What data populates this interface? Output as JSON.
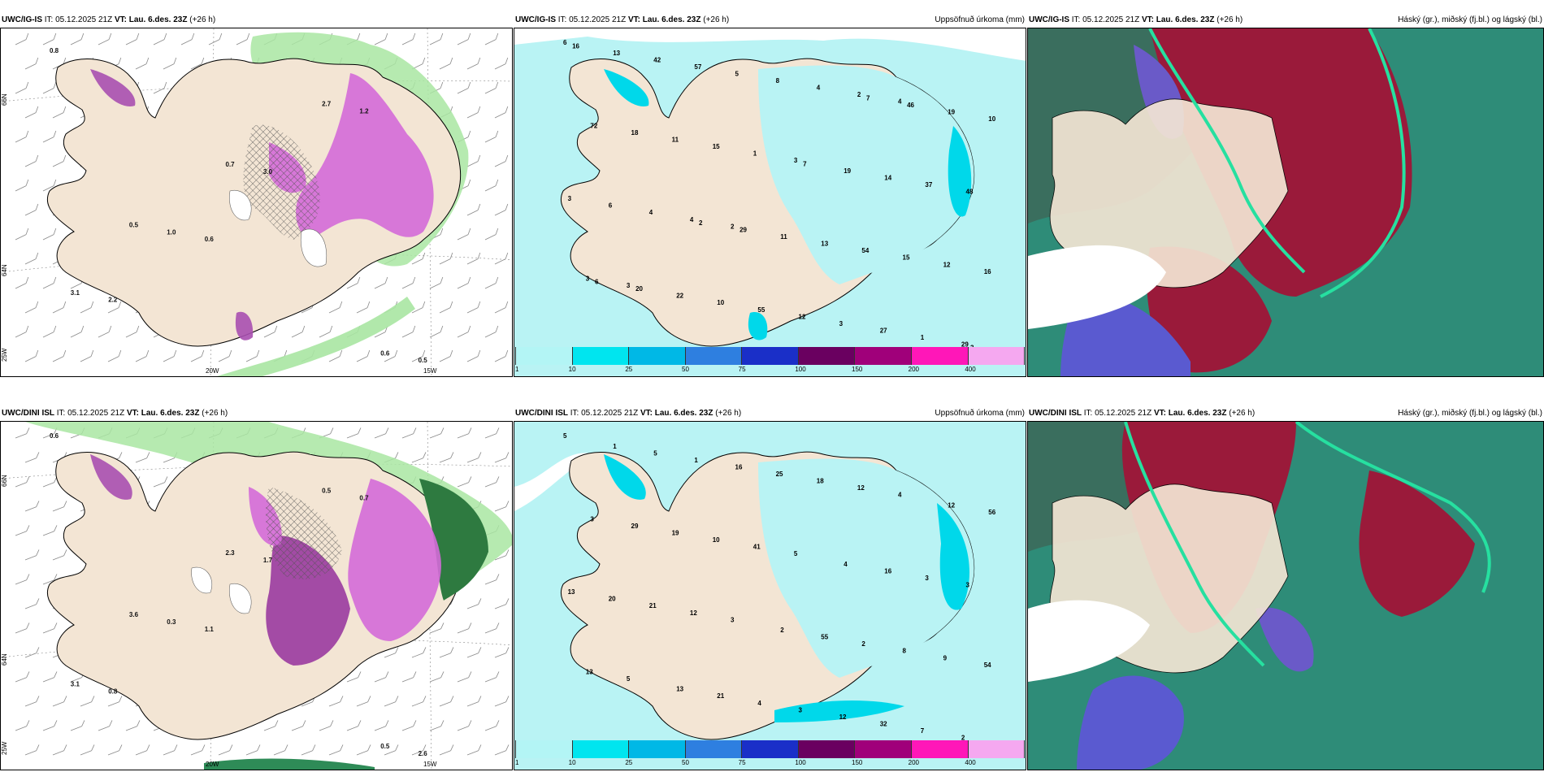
{
  "header": {
    "it_label": "IT:",
    "it_value": "05.12.2025 21Z",
    "vt_label": "VT:",
    "vt_value": "Lau. 6.des. 23Z",
    "lead": "(+26 h)"
  },
  "rows": [
    {
      "model": "UWC/IG-IS"
    },
    {
      "model": "UWC/DINI ISL"
    }
  ],
  "precip_title": "Uppsöfnuð úrkoma (mm)",
  "cloud_title": "Háský (gr.), miðský (fj.bl.) og lágský (bl.)",
  "axes": {
    "lat_66": "66N",
    "lat_64": "64N",
    "lon_20": "20W",
    "lon_15": "15W",
    "lon_25": "25W"
  },
  "colorbar": {
    "ticks": [
      "1",
      "10",
      "25",
      "50",
      "75",
      "100",
      "150",
      "200",
      "400"
    ],
    "colors": [
      "#b3f5f5",
      "#00e5ef",
      "#00b8e6",
      "#2e7fe0",
      "#1a2fc8",
      "#6a0060",
      "#a0007a",
      "#ff17b8",
      "#f5a8f0"
    ]
  },
  "colors": {
    "land": "#f3e5d4",
    "sea_precip": "#b9f3f4",
    "green_precip": "#a9e6a2",
    "magenta": "#d46ad8"
  },
  "precip_labels_top": [
    "6",
    "2",
    "4",
    "3",
    "3",
    "29",
    "4",
    "2",
    "3",
    "1",
    "1",
    "4",
    "4",
    "16",
    "15",
    "27",
    "6",
    "8",
    "12",
    "11",
    "3",
    "3",
    "5",
    "15",
    "18",
    "12",
    "48",
    "57",
    "54",
    "72",
    "55",
    "37",
    "42",
    "13",
    "10",
    "10",
    "14",
    "13",
    "11",
    "19",
    "22",
    "19",
    "16",
    "29",
    "46",
    "20",
    "7",
    "3",
    "2",
    "7",
    "6"
  ],
  "precip_labels_bottom": [
    "5",
    "3",
    "4",
    "5",
    "5",
    "2",
    "12",
    "12",
    "13",
    "41",
    "7",
    "21",
    "18",
    "54",
    "10",
    "32",
    "20",
    "25",
    "9",
    "19",
    "12",
    "13",
    "16",
    "8",
    "29",
    "3",
    "3",
    "1",
    "2",
    "3",
    "4",
    "3",
    "5",
    "55",
    "56",
    "21",
    "16",
    "1",
    "2",
    "12",
    "13",
    "4"
  ],
  "t2_labels_top": [
    "0.8",
    "0.6",
    "1.2",
    "2.2",
    "3.0",
    "0.5",
    "1.0",
    "2.7",
    "3.1",
    "0.7",
    "0.6",
    "0.5"
  ],
  "t2_labels_bottom": [
    "0.6",
    "1.1",
    "0.7",
    "0.8",
    "1.7",
    "2.6",
    "0.3",
    "0.5",
    "3.1",
    "2.3",
    "0.5",
    "3.6"
  ]
}
